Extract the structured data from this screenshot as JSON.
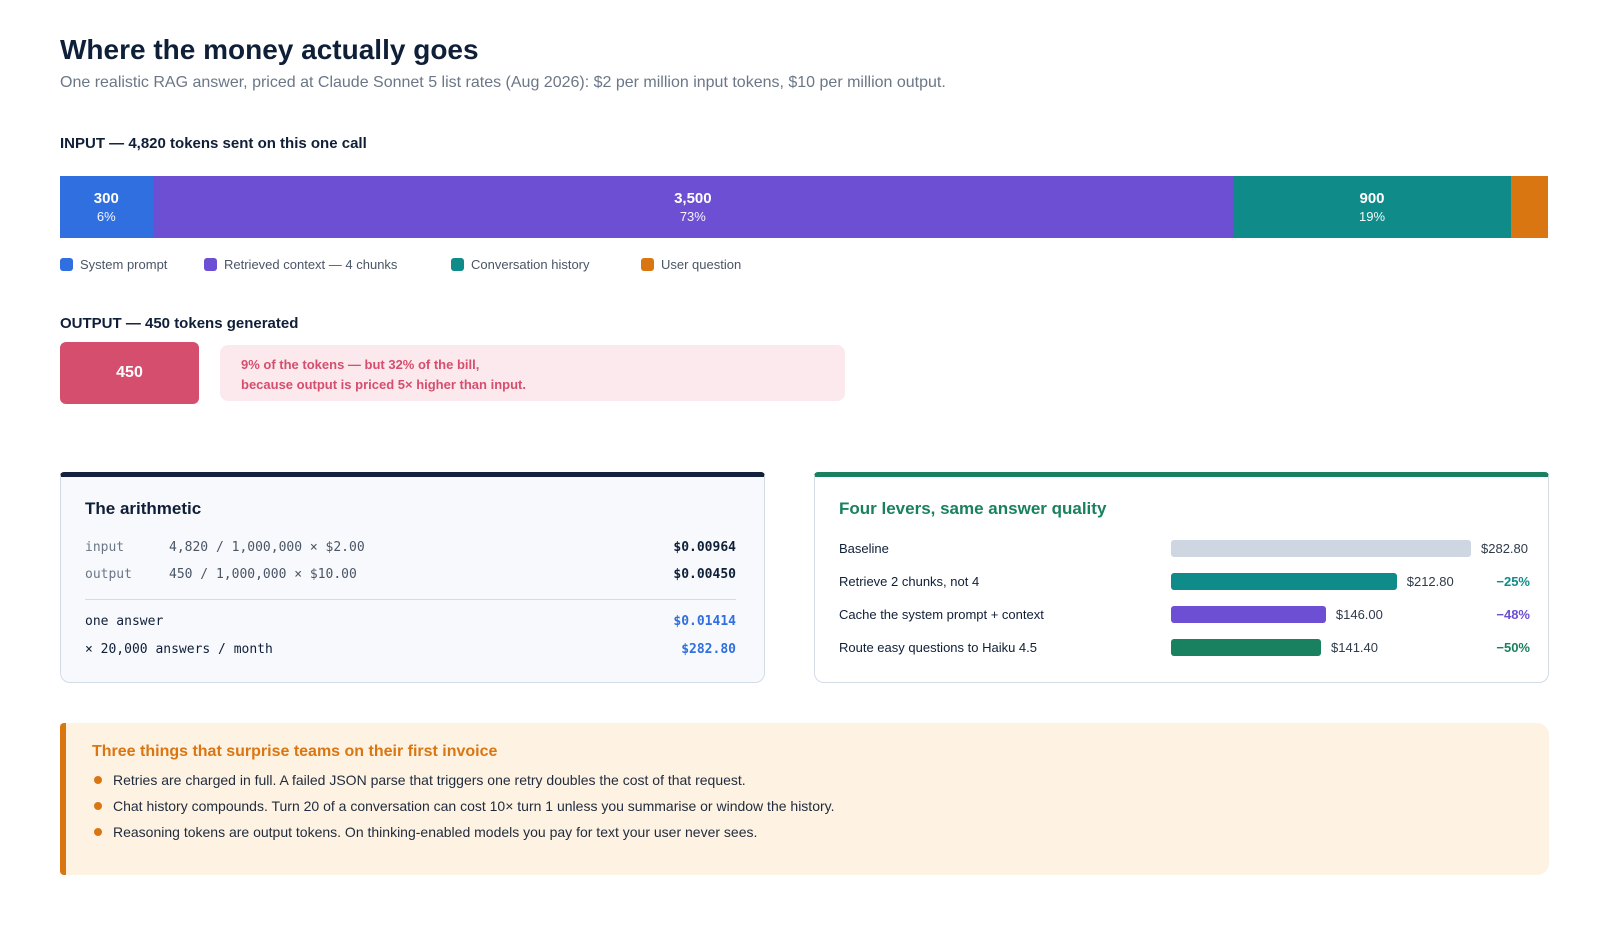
{
  "title": "Where the money actually goes",
  "subtitle": "One realistic RAG answer, priced at Claude Sonnet 5 list rates (Aug 2026): $2 per million input tokens, $10 per million output.",
  "chart_data": [
    {
      "type": "bar",
      "orientation": "horizontal-stacked",
      "title": "INPUT — 4,820 tokens sent on this one call",
      "categories": [
        "System prompt",
        "Retrieved context — 4 chunks",
        "Conversation history",
        "User question"
      ],
      "values": [
        300,
        3500,
        900,
        120
      ],
      "value_labels": [
        "300",
        "3,500",
        "900",
        ""
      ],
      "percent_labels": [
        "6%",
        "73%",
        "19%",
        ""
      ],
      "colors": [
        "#2f6fe0",
        "#6c4fd2",
        "#0f8c8a",
        "#da7612"
      ],
      "legend": "bottom-left"
    },
    {
      "type": "bar",
      "orientation": "horizontal",
      "title": "Four levers, same answer quality",
      "categories": [
        "Baseline",
        "Retrieve 2 chunks, not 4",
        "Cache the system prompt + context",
        "Route easy questions to Haiku 4.5"
      ],
      "values": [
        282.8,
        212.8,
        146.0,
        141.4
      ],
      "value_labels": [
        "$282.80",
        "$212.80",
        "$146.00",
        "$141.40"
      ],
      "deltas": [
        "",
        "−25%",
        "−48%",
        "−50%"
      ],
      "colors": [
        "#cdd6e1",
        "#0f8c8a",
        "#6c4fd2",
        "#198060"
      ],
      "delta_colors": [
        "#0f8c8a",
        "#0f8c8a",
        "#6c4fd2",
        "#198060"
      ],
      "xlim": [
        0,
        282.8
      ]
    }
  ],
  "output": {
    "label": "OUTPUT — 450 tokens generated",
    "value": "450",
    "color": "#d54e6d",
    "note_line1": "9% of the tokens — but 32% of the bill,",
    "note_line2": "because output is priced 5× higher than input."
  },
  "arithmetic": {
    "title": "The arithmetic",
    "rows": [
      {
        "key": "input",
        "expr": "4,820 / 1,000,000 × $2.00",
        "value": "$0.00964"
      },
      {
        "key": "output",
        "expr": "450 / 1,000,000 × $10.00",
        "value": "$0.00450"
      }
    ],
    "totals": [
      {
        "key": "one answer",
        "value": "$0.01414"
      },
      {
        "key": "× 20,000 answers / month",
        "value": "$282.80"
      }
    ]
  },
  "callout": {
    "title": "Three things that surprise teams on their first invoice",
    "items": [
      "Retries are charged in full. A failed JSON parse that triggers one retry doubles the cost of that request.",
      "Chat history compounds. Turn 20 of a conversation can cost 10× turn 1 unless you summarise or window the history.",
      "Reasoning tokens are output tokens. On thinking-enabled models you pay for text your user never sees."
    ]
  }
}
